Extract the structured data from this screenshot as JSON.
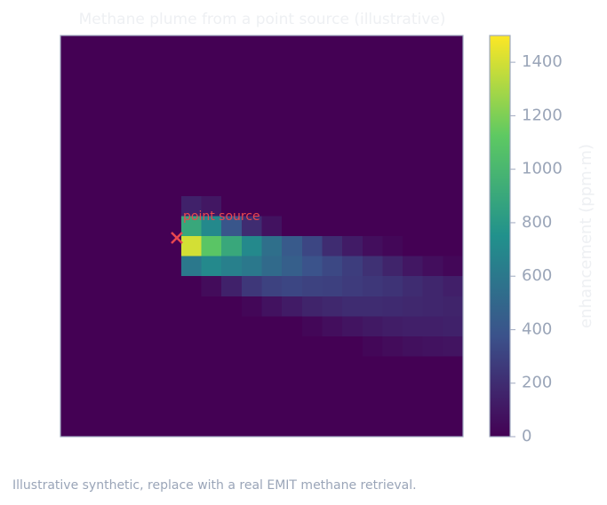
{
  "chart_data": {
    "type": "heatmap",
    "title": "Methane plume from a point source (illustrative)",
    "colorbar_label": "enhancement (ppm·m)",
    "annotation": "point source",
    "footnote": "Illustrative synthetic, replace with a real EMIT methane retrieval.",
    "colormap": "viridis",
    "zlim": [
      0,
      1500
    ],
    "zticks": [
      0,
      200,
      400,
      600,
      800,
      1000,
      1200,
      1400
    ],
    "z": [
      [
        0,
        0,
        0,
        0,
        0,
        0,
        0,
        0,
        0,
        0,
        0,
        0,
        0,
        0,
        0,
        0,
        0,
        0,
        0,
        0
      ],
      [
        0,
        0,
        0,
        0,
        0,
        0,
        0,
        0,
        0,
        0,
        0,
        0,
        0,
        0,
        0,
        0,
        0,
        0,
        0,
        0
      ],
      [
        0,
        0,
        0,
        0,
        0,
        0,
        0,
        0,
        0,
        0,
        0,
        0,
        0,
        0,
        0,
        0,
        0,
        0,
        0,
        0
      ],
      [
        0,
        0,
        0,
        0,
        0,
        0,
        0,
        0,
        0,
        0,
        0,
        0,
        0,
        0,
        0,
        0,
        0,
        0,
        0,
        0
      ],
      [
        0,
        0,
        0,
        0,
        0,
        0,
        0,
        0,
        0,
        0,
        0,
        0,
        0,
        0,
        0,
        0,
        0,
        0,
        0,
        0
      ],
      [
        0,
        0,
        0,
        0,
        0,
        0,
        0,
        0,
        0,
        0,
        0,
        0,
        0,
        0,
        0,
        0,
        0,
        0,
        0,
        0
      ],
      [
        0,
        0,
        0,
        0,
        0,
        0,
        0,
        0,
        0,
        0,
        0,
        0,
        0,
        0,
        0,
        0,
        0,
        0,
        0,
        0
      ],
      [
        0,
        0,
        0,
        0,
        0,
        0,
        0,
        0,
        0,
        0,
        0,
        0,
        0,
        0,
        0,
        0,
        0,
        0,
        0,
        0
      ],
      [
        0,
        0,
        0,
        0,
        0,
        0,
        150,
        100,
        0,
        0,
        0,
        0,
        0,
        0,
        0,
        0,
        0,
        0,
        0,
        0
      ],
      [
        0,
        0,
        0,
        0,
        0,
        0,
        900,
        700,
        400,
        200,
        80,
        0,
        0,
        0,
        0,
        0,
        0,
        0,
        0,
        0
      ],
      [
        0,
        0,
        0,
        0,
        0,
        0,
        1400,
        1100,
        900,
        700,
        550,
        420,
        320,
        200,
        120,
        60,
        30,
        0,
        0,
        0
      ],
      [
        0,
        0,
        0,
        0,
        0,
        0,
        600,
        700,
        650,
        600,
        520,
        450,
        380,
        330,
        280,
        220,
        160,
        100,
        60,
        30
      ],
      [
        0,
        0,
        0,
        0,
        0,
        0,
        0,
        50,
        150,
        250,
        300,
        320,
        300,
        290,
        270,
        250,
        230,
        200,
        170,
        140
      ],
      [
        0,
        0,
        0,
        0,
        0,
        0,
        0,
        0,
        0,
        30,
        80,
        120,
        160,
        180,
        200,
        200,
        190,
        180,
        170,
        160
      ],
      [
        0,
        0,
        0,
        0,
        0,
        0,
        0,
        0,
        0,
        0,
        0,
        0,
        30,
        60,
        90,
        110,
        130,
        140,
        140,
        150
      ],
      [
        0,
        0,
        0,
        0,
        0,
        0,
        0,
        0,
        0,
        0,
        0,
        0,
        0,
        0,
        0,
        30,
        50,
        70,
        80,
        90
      ],
      [
        0,
        0,
        0,
        0,
        0,
        0,
        0,
        0,
        0,
        0,
        0,
        0,
        0,
        0,
        0,
        0,
        0,
        0,
        0,
        0
      ],
      [
        0,
        0,
        0,
        0,
        0,
        0,
        0,
        0,
        0,
        0,
        0,
        0,
        0,
        0,
        0,
        0,
        0,
        0,
        0,
        0
      ],
      [
        0,
        0,
        0,
        0,
        0,
        0,
        0,
        0,
        0,
        0,
        0,
        0,
        0,
        0,
        0,
        0,
        0,
        0,
        0,
        0
      ],
      [
        0,
        0,
        0,
        0,
        0,
        0,
        0,
        0,
        0,
        0,
        0,
        0,
        0,
        0,
        0,
        0,
        0,
        0,
        0,
        0
      ]
    ]
  }
}
